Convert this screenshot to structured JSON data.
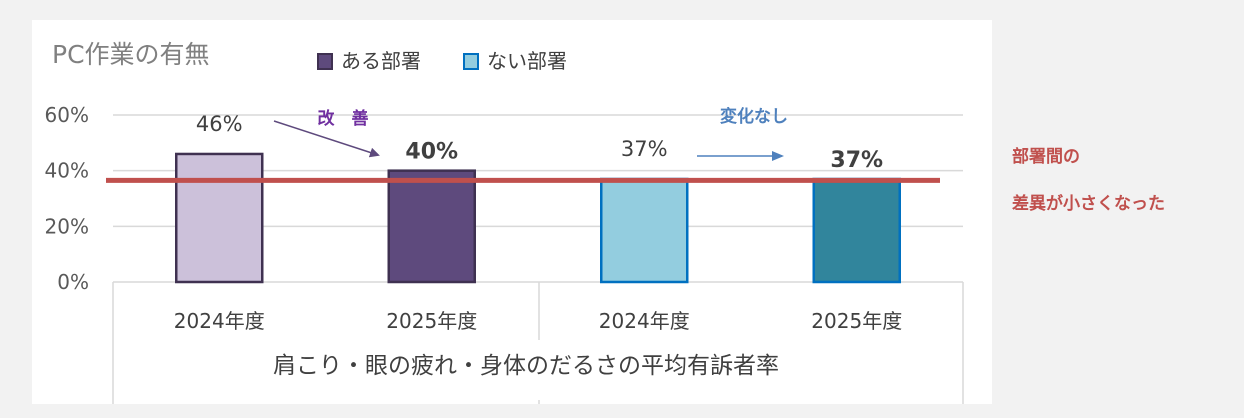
{
  "chart_data": {
    "type": "bar",
    "title": "PC作業の有無",
    "legend": [
      {
        "name": "ある部署",
        "color": "#5e4a7d"
      },
      {
        "name": "ない部署",
        "color": "#93cddf"
      }
    ],
    "legend_position": "top",
    "categories": [
      "2024年度",
      "2025年度",
      "2024年度",
      "2025年度"
    ],
    "groups": [
      "ある部署",
      "ない部署"
    ],
    "values": [
      46,
      40,
      37,
      37
    ],
    "value_labels": [
      "46%",
      "40%",
      "37%",
      "37%"
    ],
    "bar_fill": [
      "#ccc1da",
      "#5e4a7d",
      "#93cddf",
      "#31859c"
    ],
    "bar_stroke": [
      "#3f3151",
      "#3f3151",
      "#0070c0",
      "#0070c0"
    ],
    "label_bold": [
      false,
      true,
      false,
      true
    ],
    "ylim": [
      0,
      60
    ],
    "yticks": [
      0,
      20,
      40,
      60
    ],
    "ytick_labels": [
      "0%",
      "20%",
      "40%",
      "60%"
    ],
    "xlabel": "肩こり・眼の疲れ・身体のだるさの平均有訴者率",
    "ylabel": "",
    "grid": true,
    "reference_line": {
      "value": 36.5,
      "color": "#c0504d"
    },
    "annotations": {
      "improve": {
        "text": "改　善",
        "color": "#7030a0"
      },
      "nochange": {
        "text": "変化なし",
        "color": "#4f81bd"
      },
      "diff_line1": {
        "text": "部署間の",
        "color": "#c0504d"
      },
      "diff_line2": {
        "text": "差異が小さくなった",
        "color": "#c0504d"
      }
    },
    "colors": {
      "grid": "#d9d9d9",
      "axis": "#d9d9d9",
      "text": "#595959",
      "improve_arrow": "#5e4a7d",
      "nochange_arrow": "#4f81bd"
    }
  }
}
